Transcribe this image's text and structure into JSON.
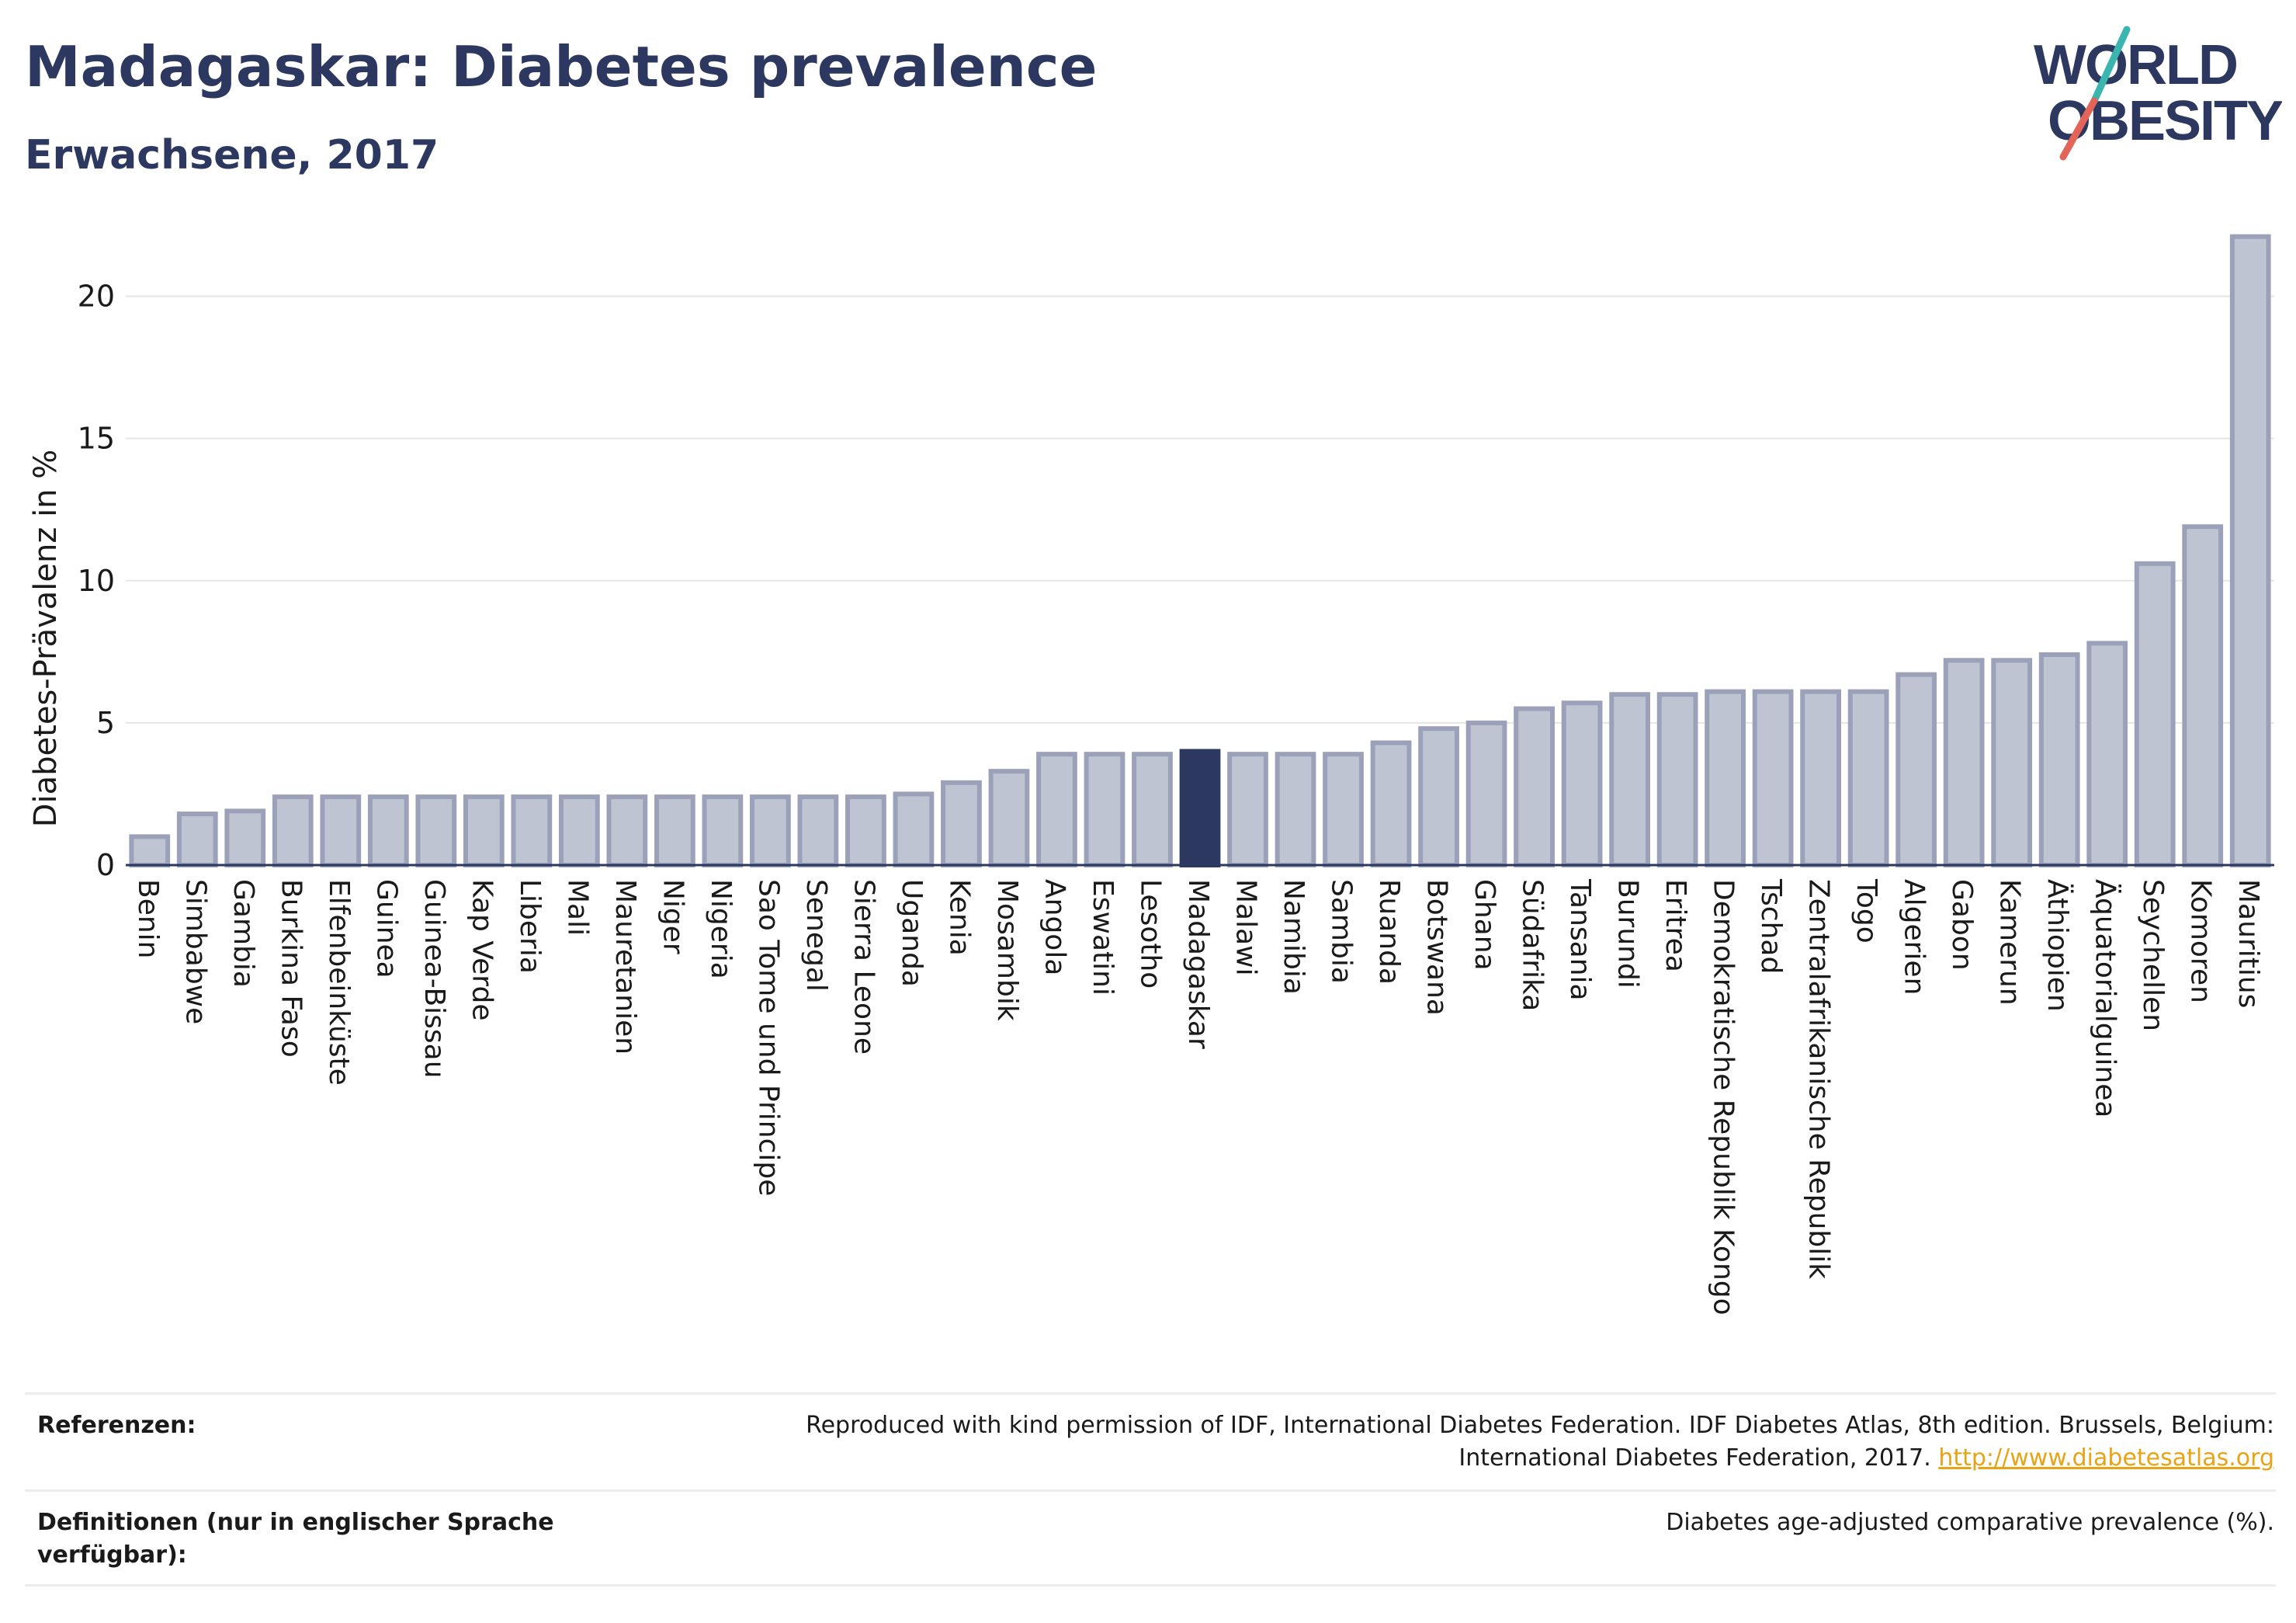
{
  "header": {
    "title": "Madagaskar: Diabetes prevalence",
    "subtitle": "Erwachsene, 2017"
  },
  "logo": {
    "line1": "WORLD",
    "line2": "OBESITY",
    "colors": {
      "text": "#2d3860",
      "slash_teal": "#3ab5b0",
      "slash_red": "#e3655a"
    }
  },
  "colors": {
    "bar_fill": "#bfc4d3",
    "bar_stroke": "#9aa1b8",
    "highlight": "#2d3860",
    "grid": "#e6e6e6",
    "axis": "#2d3860"
  },
  "chart_data": {
    "type": "bar",
    "title": "Madagaskar: Diabetes prevalence",
    "subtitle": "Erwachsene, 2017",
    "ylabel": "Diabetes-Prävalenz in %",
    "xlabel": "",
    "ylim": [
      0,
      22.5
    ],
    "yticks": [
      0,
      5,
      10,
      15,
      20
    ],
    "highlight": "Madagaskar",
    "grid": true,
    "categories": [
      "Benin",
      "Simbabwe",
      "Gambia",
      "Burkina Faso",
      "Elfenbeinküste",
      "Guinea",
      "Guinea-Bissau",
      "Kap Verde",
      "Liberia",
      "Mali",
      "Mauretanien",
      "Niger",
      "Nigeria",
      "Sao Tome und Principe",
      "Senegal",
      "Sierra Leone",
      "Uganda",
      "Kenia",
      "Mosambik",
      "Angola",
      "Eswatini",
      "Lesotho",
      "Madagaskar",
      "Malawi",
      "Namibia",
      "Sambia",
      "Ruanda",
      "Botswana",
      "Ghana",
      "Südafrika",
      "Tansania",
      "Burundi",
      "Eritrea",
      "Demokratische Republik Kongo",
      "Tschad",
      "Zentralafrikanische Republik",
      "Togo",
      "Algerien",
      "Gabon",
      "Kamerun",
      "Äthiopien",
      "Äquatorialguinea",
      "Seychellen",
      "Komoren",
      "Mauritius"
    ],
    "values": [
      1.0,
      1.8,
      1.9,
      2.4,
      2.4,
      2.4,
      2.4,
      2.4,
      2.4,
      2.4,
      2.4,
      2.4,
      2.4,
      2.4,
      2.4,
      2.4,
      2.5,
      2.9,
      3.3,
      3.9,
      3.9,
      3.9,
      4.0,
      3.9,
      3.9,
      3.9,
      4.3,
      4.8,
      5.0,
      5.5,
      5.7,
      6.0,
      6.0,
      6.1,
      6.1,
      6.1,
      6.1,
      6.7,
      7.2,
      7.2,
      7.4,
      7.8,
      10.6,
      11.9,
      22.1
    ]
  },
  "footer": {
    "references_label": "Referenzen:",
    "references_text_1": "Reproduced with kind permission of IDF, International Diabetes Federation. IDF Diabetes Atlas, 8th edition. Brussels, Belgium:",
    "references_text_2": "International Diabetes Federation, 2017.",
    "references_link": "http://www.diabetesatlas.org",
    "definitions_label_1": "Definitionen (nur in englischer Sprache",
    "definitions_label_2": "verfügbar):",
    "definitions_text": "Diabetes age-adjusted comparative prevalence (%)."
  }
}
